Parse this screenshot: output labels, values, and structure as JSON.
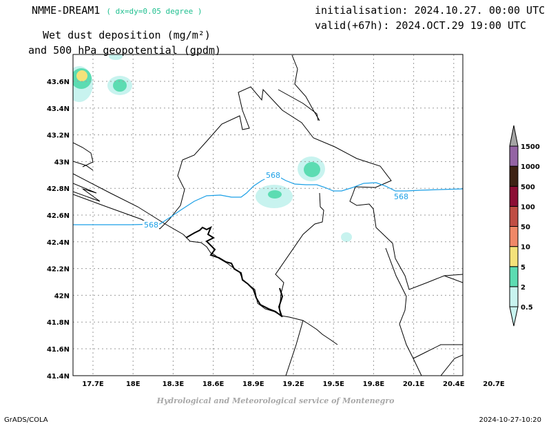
{
  "header": {
    "model": "NMME-DREAM1",
    "resolution": "( dx=dy=0.05 degree )",
    "init": "initialisation: 2024.10.27. 00:00 UTC",
    "valid": "valid(+67h): 2024.OCT.29 19:00 UTC",
    "title_line1": "Wet dust deposition (mg/m²)",
    "title_line2": "and 500 hPa geopotential (gpdm)"
  },
  "map": {
    "lat_labels": [
      "43.6N",
      "43.4N",
      "43.2N",
      "43N",
      "42.8N",
      "42.6N",
      "42.4N",
      "42.2N",
      "42N",
      "41.8N",
      "41.6N",
      "41.4N"
    ],
    "lon_labels": [
      "17.7E",
      "18E",
      "18.3E",
      "18.6E",
      "18.9E",
      "19.2E",
      "19.5E",
      "19.8E",
      "20.1E",
      "20.4E",
      "20.7E"
    ],
    "contour_labels": [
      "568",
      "568",
      "568"
    ],
    "contour_color": "#1a9fe6",
    "grid": true
  },
  "colorbar": {
    "levels": [
      "0.5",
      "2",
      "5",
      "10",
      "50",
      "100",
      "500",
      "1000",
      "1500"
    ],
    "colors": [
      "#c8f3ef",
      "#5cdcb2",
      "#f4e27a",
      "#f08868",
      "#c04e44",
      "#8c0e34",
      "#3e2214",
      "#9464a4",
      "#a4a4a4"
    ]
  },
  "footer": {
    "credit": "Hydrological and Meteorological service of Montenegro",
    "left": "GrADS/COLA",
    "right": "2024-10-27-10:20"
  }
}
